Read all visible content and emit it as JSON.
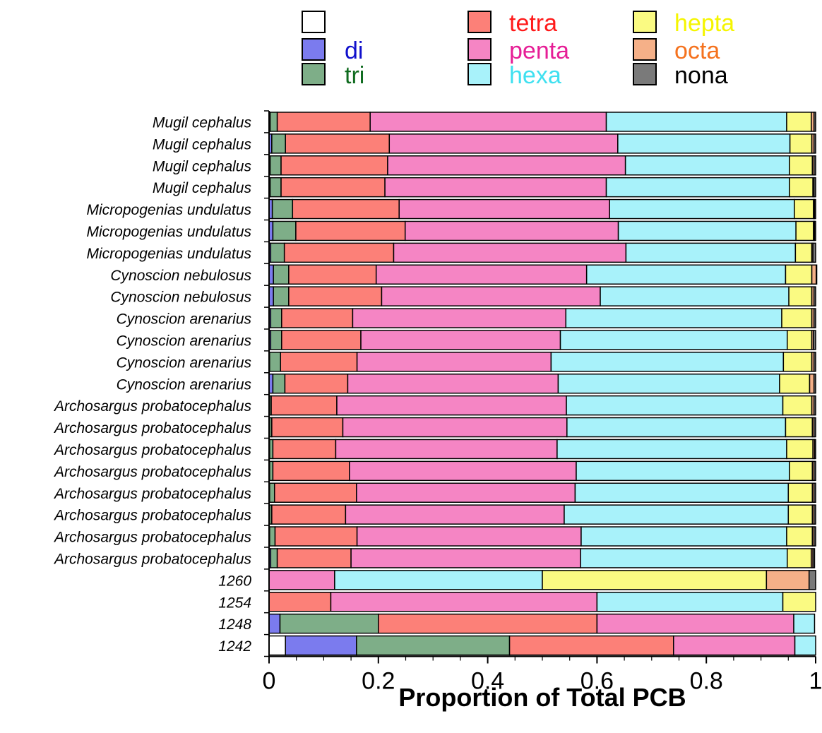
{
  "chart_data": {
    "type": "bar",
    "orientation": "horizontal",
    "stacked": true,
    "xlabel": "Proportion of Total PCB",
    "xlim": [
      0,
      1
    ],
    "x_ticks": [
      "0",
      "0.2",
      "0.4",
      "0.6",
      "0.8",
      "1"
    ],
    "grid": false,
    "legend_position": "top",
    "stack_order": [
      "none",
      "di",
      "tri",
      "tetra",
      "penta",
      "hexa",
      "hepta",
      "octa",
      "nona"
    ],
    "legend": [
      {
        "key": "none",
        "label": "",
        "fill": "#ffffff",
        "text_color": "#000000"
      },
      {
        "key": "di",
        "label": "di",
        "fill": "#7b7bee",
        "text_color": "#1010cc"
      },
      {
        "key": "tri",
        "label": "tri",
        "fill": "#7eae88",
        "text_color": "#0f6b1f"
      },
      {
        "key": "tetra",
        "label": "tetra",
        "fill": "#fc8078",
        "text_color": "#ff1a1a"
      },
      {
        "key": "penta",
        "label": "penta",
        "fill": "#f585c4",
        "text_color": "#e61e96"
      },
      {
        "key": "hexa",
        "label": "hexa",
        "fill": "#a8f2fa",
        "text_color": "#3fe0f0"
      },
      {
        "key": "hepta",
        "label": "hepta",
        "fill": "#fafa82",
        "text_color": "#f5f500"
      },
      {
        "key": "octa",
        "label": "octa",
        "fill": "#f5b088",
        "text_color": "#f5721e"
      },
      {
        "key": "nona",
        "label": "nona",
        "fill": "#7a7a7a",
        "text_color": "#000000"
      }
    ],
    "categories": [
      "Mugil cephalus",
      "Mugil cephalus",
      "Mugil cephalus",
      "Mugil cephalus",
      "Micropogenias undulatus",
      "Micropogenias undulatus",
      "Micropogenias undulatus",
      "Cynoscion nebulosus",
      "Cynoscion nebulosus",
      "Cynoscion arenarius",
      "Cynoscion arenarius",
      "Cynoscion arenarius",
      "Cynoscion arenarius",
      "Archosargus probatocephalus",
      "Archosargus probatocephalus",
      "Archosargus probatocephalus",
      "Archosargus probatocephalus",
      "Archosargus probatocephalus",
      "Archosargus probatocephalus",
      "Archosargus probatocephalus",
      "Archosargus probatocephalus",
      "1260",
      "1254",
      "1248",
      "1242"
    ],
    "series": [
      {
        "key": "none",
        "values": [
          0,
          0,
          0,
          0,
          0,
          0,
          0,
          0,
          0,
          0,
          0,
          0,
          0,
          0,
          0,
          0,
          0,
          0,
          0,
          0,
          0,
          0,
          0,
          0,
          0.03
        ]
      },
      {
        "key": "di",
        "values": [
          0.002,
          0.005,
          0.002,
          0.002,
          0.006,
          0.007,
          0.003,
          0.008,
          0.008,
          0.003,
          0.003,
          0.001,
          0.007,
          0.001,
          0.001,
          0.001,
          0.001,
          0.001,
          0.001,
          0.001,
          0.003,
          0,
          0,
          0.02,
          0.13
        ]
      },
      {
        "key": "tri",
        "values": [
          0.013,
          0.025,
          0.02,
          0.02,
          0.037,
          0.042,
          0.025,
          0.028,
          0.028,
          0.02,
          0.02,
          0.02,
          0.022,
          0.003,
          0.004,
          0.006,
          0.006,
          0.009,
          0.004,
          0.01,
          0.012,
          0,
          0,
          0.18,
          0.28
        ]
      },
      {
        "key": "tetra",
        "values": [
          0.17,
          0.19,
          0.195,
          0.19,
          0.195,
          0.2,
          0.2,
          0.16,
          0.17,
          0.13,
          0.145,
          0.14,
          0.115,
          0.12,
          0.13,
          0.115,
          0.14,
          0.15,
          0.135,
          0.15,
          0.135,
          0,
          0.113,
          0.4,
          0.3
        ]
      },
      {
        "key": "penta",
        "values": [
          0.432,
          0.418,
          0.435,
          0.405,
          0.385,
          0.39,
          0.425,
          0.385,
          0.4,
          0.39,
          0.365,
          0.355,
          0.385,
          0.42,
          0.41,
          0.405,
          0.415,
          0.4,
          0.4,
          0.41,
          0.42,
          0.12,
          0.487,
          0.36,
          0.222
        ]
      },
      {
        "key": "hexa",
        "values": [
          0.33,
          0.315,
          0.3,
          0.335,
          0.338,
          0.325,
          0.31,
          0.364,
          0.345,
          0.395,
          0.415,
          0.425,
          0.405,
          0.396,
          0.4,
          0.42,
          0.39,
          0.39,
          0.41,
          0.376,
          0.378,
          0.38,
          0.34,
          0.038,
          0.038
        ]
      },
      {
        "key": "hepta",
        "values": [
          0.045,
          0.04,
          0.042,
          0.043,
          0.035,
          0.032,
          0.03,
          0.048,
          0.042,
          0.055,
          0.045,
          0.052,
          0.055,
          0.053,
          0.049,
          0.048,
          0.042,
          0.044,
          0.044,
          0.047,
          0.044,
          0.41,
          0.06,
          0,
          0
        ]
      },
      {
        "key": "octa",
        "values": [
          0.005,
          0.004,
          0.003,
          0.002,
          0.002,
          0.002,
          0.002,
          0.008,
          0.004,
          0.004,
          0.003,
          0.004,
          0.008,
          0.004,
          0.003,
          0.003,
          0.003,
          0.003,
          0.003,
          0.003,
          0.003,
          0.078,
          0,
          0,
          0
        ]
      },
      {
        "key": "nona",
        "values": [
          0.003,
          0.003,
          0.003,
          0.003,
          0.002,
          0.002,
          0.005,
          0.001,
          0.003,
          0.003,
          0.004,
          0.003,
          0.003,
          0.003,
          0.003,
          0.002,
          0.003,
          0.003,
          0.003,
          0.003,
          0.003,
          0.012,
          0,
          0,
          0
        ]
      }
    ]
  }
}
